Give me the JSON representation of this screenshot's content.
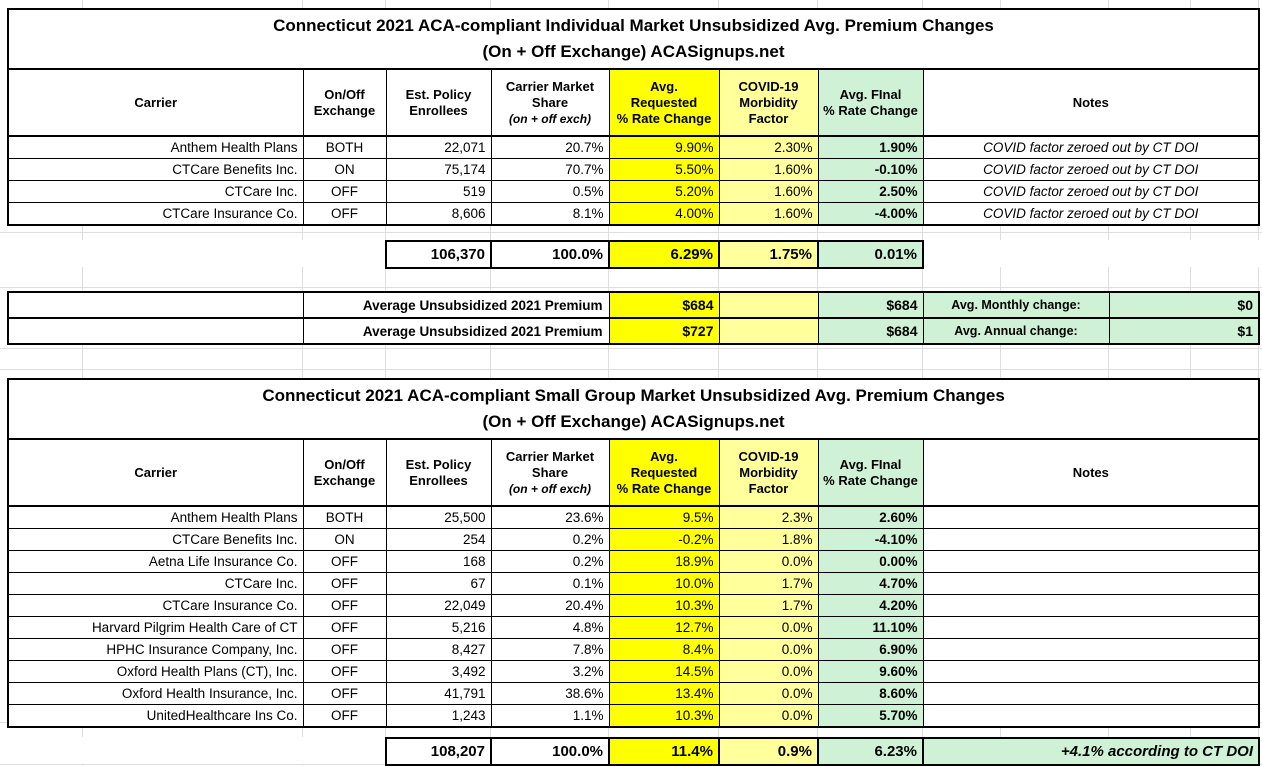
{
  "colors": {
    "requested_column": "#FFFF00",
    "covid_column": "#FFFF9C",
    "final_column": "#CFF2D6",
    "border": "#000000"
  },
  "columns": {
    "carrier": "Carrier",
    "exchange": "On/Off\nExchange",
    "enrollees": "Est. Policy\nEnrollees",
    "share": "Carrier Market\nShare",
    "share_sub": "(on + off exch)",
    "requested": "Avg.\nRequested\n% Rate Change",
    "covid": "COVID-19\nMorbidity\nFactor",
    "final": "Avg. FInal\n% Rate Change",
    "notes": "Notes"
  },
  "table1": {
    "title": "Connecticut 2021 ACA-compliant Individual Market Unsubsidized Avg. Premium Changes\n(On + Off Exchange) ACASignups.net",
    "rows": [
      [
        "Anthem Health Plans",
        "BOTH",
        "22,071",
        "20.7%",
        "9.90%",
        "2.30%",
        "1.90%",
        "COVID factor zeroed out by CT DOI"
      ],
      [
        "CTCare Benefits Inc.",
        "ON",
        "75,174",
        "70.7%",
        "5.50%",
        "1.60%",
        "-0.10%",
        "COVID factor zeroed out by CT DOI"
      ],
      [
        "CTCare Inc.",
        "OFF",
        "519",
        "0.5%",
        "5.20%",
        "1.60%",
        "2.50%",
        "COVID factor zeroed out by CT DOI"
      ],
      [
        "CTCare Insurance Co.",
        "OFF",
        "8,606",
        "8.1%",
        "4.00%",
        "1.60%",
        "-4.00%",
        "COVID factor zeroed out by CT DOI"
      ]
    ],
    "totals": {
      "enrollees": "106,370",
      "share": "100.0%",
      "requested": "6.29%",
      "covid": "1.75%",
      "final": "0.01%"
    },
    "summary": [
      {
        "label": "Average Unsubsidized 2021 Premium",
        "requested": "$684",
        "covid": "",
        "final": "$684",
        "change_label": "Avg. Monthly change:",
        "change_value": "$0"
      },
      {
        "label": "Average Unsubsidized 2021 Premium",
        "requested": "$727",
        "covid": "",
        "final": "$684",
        "change_label": "Avg. Annual change:",
        "change_value": "$1"
      }
    ]
  },
  "table2": {
    "title": "Connecticut 2021 ACA-compliant Small Group Market Unsubsidized Avg. Premium Changes\n(On + Off Exchange) ACASignups.net",
    "rows": [
      [
        "Anthem Health Plans",
        "BOTH",
        "25,500",
        "23.6%",
        "9.5%",
        "2.3%",
        "2.60%",
        ""
      ],
      [
        "CTCare Benefits Inc.",
        "ON",
        "254",
        "0.2%",
        "-0.2%",
        "1.8%",
        "-4.10%",
        ""
      ],
      [
        "Aetna Life Insurance Co.",
        "OFF",
        "168",
        "0.2%",
        "18.9%",
        "0.0%",
        "0.00%",
        ""
      ],
      [
        "CTCare Inc.",
        "OFF",
        "67",
        "0.1%",
        "10.0%",
        "1.7%",
        "4.70%",
        ""
      ],
      [
        "CTCare Insurance Co.",
        "OFF",
        "22,049",
        "20.4%",
        "10.3%",
        "1.7%",
        "4.20%",
        ""
      ],
      [
        "Harvard Pilgrim Health Care of CT",
        "OFF",
        "5,216",
        "4.8%",
        "12.7%",
        "0.0%",
        "11.10%",
        ""
      ],
      [
        "HPHC Insurance Company, Inc.",
        "OFF",
        "8,427",
        "7.8%",
        "8.4%",
        "0.0%",
        "6.90%",
        ""
      ],
      [
        "Oxford Health Plans (CT), Inc.",
        "OFF",
        "3,492",
        "3.2%",
        "14.5%",
        "0.0%",
        "9.60%",
        ""
      ],
      [
        "Oxford Health Insurance, Inc.",
        "OFF",
        "41,791",
        "38.6%",
        "13.4%",
        "0.0%",
        "8.60%",
        ""
      ],
      [
        "UnitedHealthcare Ins Co.",
        "OFF",
        "1,243",
        "1.1%",
        "10.3%",
        "0.0%",
        "5.70%",
        ""
      ]
    ],
    "totals": {
      "enrollees": "108,207",
      "share": "100.0%",
      "requested": "11.4%",
      "covid": "0.9%",
      "final": "6.23%",
      "note": "+4.1% according to CT DOI"
    }
  }
}
